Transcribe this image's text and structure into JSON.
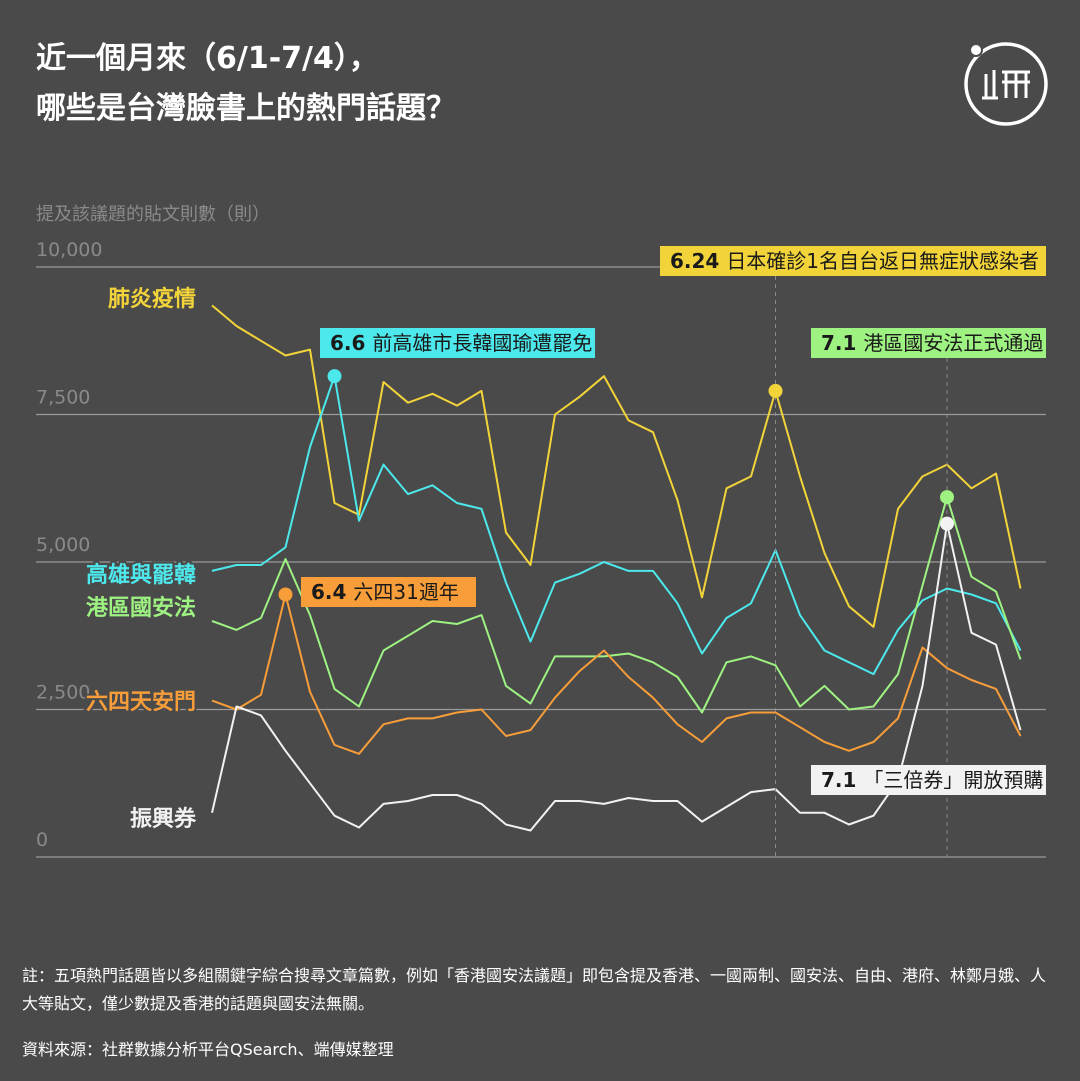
{
  "title": {
    "line1": "近一個月來（6/1-7/4），",
    "line2": "哪些是台灣臉書上的熱門話題？"
  },
  "note": "註：五項熱門話題皆以多組關鍵字綜合搜尋文章篇數，例如「香港國安法議題」即包含提及香港、一國兩制、國安法、自由、港府、林鄭月娥、人大等貼文，僅少數提及香港的話題與國安法無關。",
  "source": "資料來源：社群數據分析平台QSearch、端傳媒整理",
  "chart_data": {
    "type": "line",
    "ylabel": "提及該議題的貼文則數（則）",
    "ylim": [
      0,
      10000
    ],
    "yticks": [
      {
        "value": 10000,
        "label": "10,000"
      },
      {
        "value": 7500,
        "label": "7,500"
      },
      {
        "value": 5000,
        "label": "5,000"
      },
      {
        "value": 2500,
        "label": "2,500"
      },
      {
        "value": 0,
        "label": "0"
      }
    ],
    "x": [
      "6/1",
      "6/2",
      "6/3",
      "6/4",
      "6/5",
      "6/6",
      "6/7",
      "6/8",
      "6/9",
      "6/10",
      "6/11",
      "6/12",
      "6/13",
      "6/14",
      "6/15",
      "6/16",
      "6/17",
      "6/18",
      "6/19",
      "6/20",
      "6/21",
      "6/22",
      "6/23",
      "6/24",
      "6/25",
      "6/26",
      "6/27",
      "6/28",
      "6/29",
      "6/30",
      "7/1",
      "7/2",
      "7/3",
      "7/4"
    ],
    "grid": true,
    "series": [
      {
        "name": "肺炎疫情",
        "color": "#f2d43a",
        "values": [
          9350,
          9000,
          8750,
          8500,
          8600,
          6000,
          5800,
          8050,
          7700,
          7850,
          7650,
          7900,
          5500,
          4950,
          7500,
          7800,
          8150,
          7400,
          7200,
          6050,
          4400,
          6250,
          6450,
          7900,
          6450,
          5150,
          4250,
          3900,
          5900,
          6450,
          6650,
          6250,
          6500,
          4550
        ]
      },
      {
        "name": "高雄與罷韓",
        "color": "#4de8ec",
        "values": [
          4850,
          4950,
          4950,
          5250,
          6950,
          8150,
          5700,
          6650,
          6150,
          6300,
          6000,
          5900,
          4650,
          3650,
          4650,
          4800,
          5000,
          4850,
          4850,
          4300,
          3450,
          4050,
          4300,
          5200,
          4100,
          3500,
          3300,
          3100,
          3850,
          4350,
          4550,
          4450,
          4300,
          3500
        ]
      },
      {
        "name": "港區國安法",
        "color": "#9ef282",
        "values": [
          4000,
          3850,
          4050,
          5050,
          4100,
          2850,
          2550,
          3500,
          3750,
          4000,
          3950,
          4100,
          2900,
          2600,
          3400,
          3400,
          3400,
          3450,
          3300,
          3050,
          2450,
          3300,
          3400,
          3250,
          2550,
          2900,
          2500,
          2550,
          3100,
          4600,
          6100,
          4750,
          4500,
          3350
        ]
      },
      {
        "name": "六四天安門",
        "color": "#f79d3a",
        "values": [
          2650,
          2500,
          2750,
          4450,
          2800,
          1900,
          1750,
          2250,
          2350,
          2350,
          2450,
          2500,
          2050,
          2150,
          2700,
          3150,
          3500,
          3050,
          2700,
          2250,
          1950,
          2350,
          2450,
          2450,
          2200,
          1950,
          1800,
          1950,
          2350,
          3550,
          3200,
          3000,
          2850,
          2050
        ]
      },
      {
        "name": "振興券",
        "color": "#f2f2f2",
        "values": [
          750,
          2550,
          2400,
          1800,
          1250,
          700,
          500,
          900,
          950,
          1050,
          1050,
          900,
          550,
          450,
          950,
          950,
          900,
          1000,
          950,
          950,
          600,
          850,
          1100,
          1150,
          750,
          750,
          550,
          700,
          1300,
          2900,
          5650,
          3800,
          3600,
          2150
        ]
      }
    ],
    "annotations": [
      {
        "date": "6.24",
        "text": "日本確診1名自台返日無症狀感染者",
        "series": "肺炎疫情",
        "color": "#f2d43a"
      },
      {
        "date": "6.6",
        "text": "前高雄市長韓國瑜遭罷免",
        "series": "高雄與罷韓",
        "color": "#4de8ec"
      },
      {
        "date": "7.1",
        "text": "港區國安法正式通過",
        "series": "港區國安法",
        "color": "#9ef282"
      },
      {
        "date": "6.4",
        "text": "六四31週年",
        "series": "六四天安門",
        "color": "#f79d3a"
      },
      {
        "date": "7.1",
        "text": "「三倍券」開放預購",
        "series": "振興券",
        "color": "#f2f2f2"
      }
    ]
  }
}
